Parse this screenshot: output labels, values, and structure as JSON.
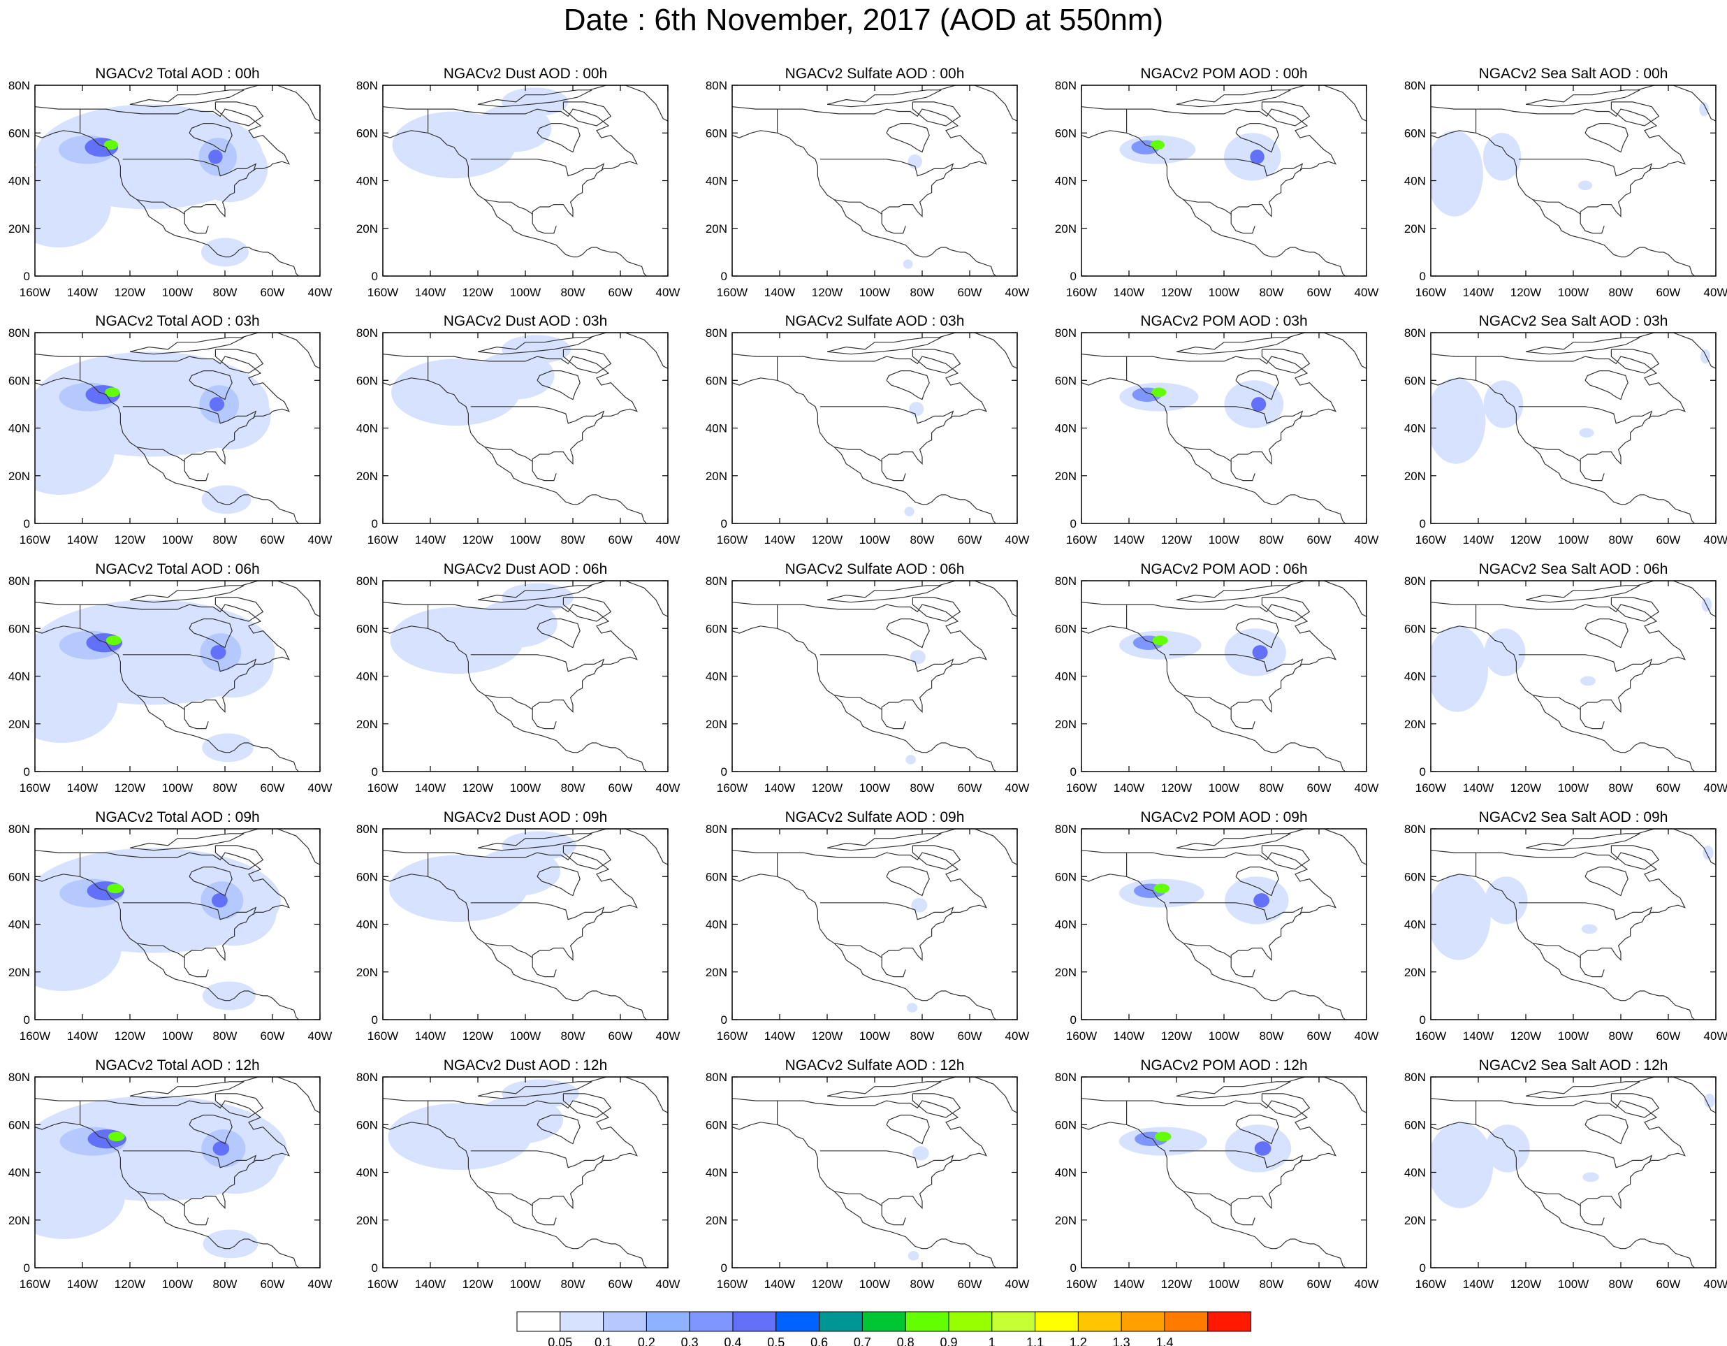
{
  "title": "Date : 6th November, 2017 (AOD at 550nm)",
  "panel_titles": [
    [
      "NGACv2 Total AOD : 00h",
      "NGACv2 Dust AOD : 00h",
      "NGACv2 Sulfate AOD : 00h",
      "NGACv2 POM AOD : 00h",
      "NGACv2 Sea Salt AOD : 00h"
    ],
    [
      "NGACv2 Total AOD : 03h",
      "NGACv2 Dust AOD : 03h",
      "NGACv2 Sulfate AOD : 03h",
      "NGACv2 POM AOD : 03h",
      "NGACv2 Sea Salt AOD : 03h"
    ],
    [
      "NGACv2 Total AOD : 06h",
      "NGACv2 Dust AOD : 06h",
      "NGACv2 Sulfate AOD : 06h",
      "NGACv2 POM AOD : 06h",
      "NGACv2 Sea Salt AOD : 06h"
    ],
    [
      "NGACv2 Total AOD : 09h",
      "NGACv2 Dust AOD : 09h",
      "NGACv2 Sulfate AOD : 09h",
      "NGACv2 POM AOD : 09h",
      "NGACv2 Sea Salt  AOD : 09h"
    ],
    [
      "NGACv2 Total AOD  : 12h",
      "NGACv2 Dust AOD : 12h",
      "NGACv2 Sulfate AOD : 12h",
      "NGACv2 POM  AOD : 12h",
      "NGACv2 Sea Salt  AOD : 12h"
    ]
  ],
  "map": {
    "lon_range": [
      -160,
      -40
    ],
    "lat_range": [
      0,
      80
    ],
    "lon_ticks": [
      "160W",
      "140W",
      "120W",
      "100W",
      "80W",
      "60W",
      "40W"
    ],
    "lat_ticks": [
      "80N",
      "60N",
      "40N",
      "20N",
      "0"
    ]
  },
  "colorbar": {
    "colors": [
      "#ffffff",
      "#d6e2ff",
      "#b5c9ff",
      "#8eb2ff",
      "#7f96ff",
      "#6370f8",
      "#0063ff",
      "#009696",
      "#00c633",
      "#63ff00",
      "#96ff00",
      "#c6ff33",
      "#ffff00",
      "#ffc600",
      "#ffa000",
      "#ff7c00",
      "#ff1900"
    ],
    "labels": [
      "0.05",
      "0.1",
      "0.2",
      "0.3",
      "0.4",
      "0.5",
      "0.6",
      "0.7",
      "0.8",
      "0.9",
      "1",
      "1.1",
      "1.2",
      "1.3",
      "1.4"
    ]
  }
}
